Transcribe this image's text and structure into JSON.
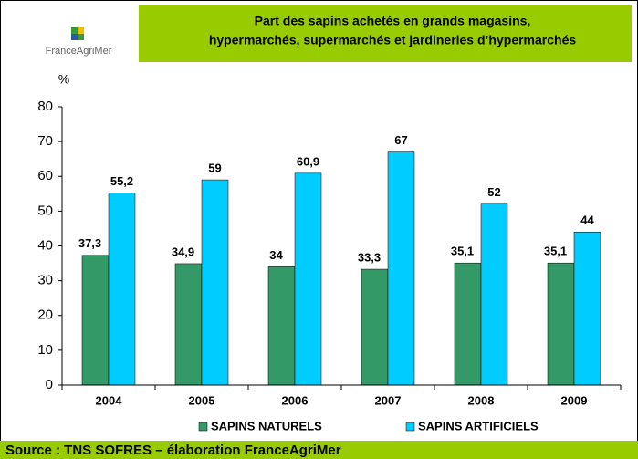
{
  "chart_data": {
    "type": "bar",
    "logo": "FranceAgriMer",
    "title": [
      "Part des sapins achetés en grands magasins,",
      "hypermarchés, supermarchés et jardineries d’hypermarchés"
    ],
    "y_label": "%",
    "source": "Source : TNS SOFRES – élaboration FranceAgriMer",
    "categories": [
      "2004",
      "2005",
      "2006",
      "2007",
      "2008",
      "2009"
    ],
    "series": [
      {
        "name": "SAPINS NATURELS",
        "color": "#339966",
        "values": [
          37.3,
          34.9,
          34,
          33.3,
          35.1,
          35.1
        ],
        "value_labels": [
          "37,3",
          "34,9",
          "34",
          "33,3",
          "35,1",
          "35,1"
        ]
      },
      {
        "name": "SAPINS ARTIFICIELS",
        "color": "#00ccff",
        "values": [
          55.2,
          59,
          60.9,
          67,
          52,
          44
        ],
        "value_labels": [
          "55,2",
          "59",
          "60,9",
          "67",
          "52",
          "44"
        ]
      }
    ],
    "ylim": [
      0,
      80
    ],
    "yticks": [
      0,
      10,
      20,
      30,
      40,
      50,
      60,
      70,
      80
    ],
    "grid": false,
    "legend": "bottom"
  }
}
